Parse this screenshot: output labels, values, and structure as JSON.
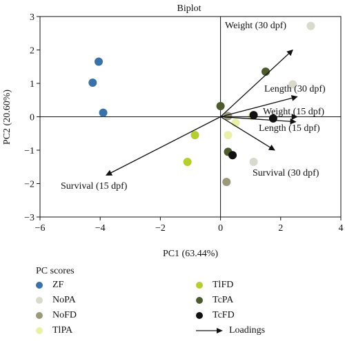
{
  "chart_data": {
    "type": "scatter",
    "title": "Biplot",
    "xlabel": "PC1 (63.44%)",
    "ylabel": "PC2 (20.60%)",
    "xlim": [
      -6,
      4
    ],
    "ylim": [
      -3,
      3
    ],
    "xticks": [
      -6,
      -4,
      -2,
      0,
      2,
      4
    ],
    "yticks": [
      -3,
      -2,
      -1,
      0,
      1,
      2,
      3
    ],
    "xtick_labels": [
      "−6",
      "−4",
      "−2",
      "0",
      "2",
      "4"
    ],
    "ytick_labels": [
      "−3",
      "−2",
      "−1",
      "0",
      "1",
      "2",
      "3"
    ],
    "reference_lines": {
      "x0": true,
      "y0": true
    },
    "grid": false,
    "series": [
      {
        "name": "ZF",
        "color": "#3a72a8",
        "points": [
          [
            -4.05,
            1.65
          ],
          [
            -4.25,
            1.02
          ],
          [
            -3.9,
            0.12
          ]
        ]
      },
      {
        "name": "NoPA",
        "color": "#d9d9cc",
        "points": [
          [
            3.0,
            2.72
          ],
          [
            2.4,
            0.97
          ],
          [
            1.1,
            -1.35
          ]
        ]
      },
      {
        "name": "NoFD",
        "color": "#9a9a7a",
        "points": [
          [
            0.2,
            -1.95
          ],
          [
            0.25,
            0.02
          ]
        ]
      },
      {
        "name": "TlPA",
        "color": "#eaf0a8",
        "points": [
          [
            0.5,
            -0.18
          ],
          [
            0.25,
            -0.55
          ],
          [
            1.05,
            0.02
          ]
        ]
      },
      {
        "name": "TlFD",
        "color": "#b5cf2e",
        "points": [
          [
            -0.85,
            -0.55
          ],
          [
            -1.1,
            -1.35
          ]
        ]
      },
      {
        "name": "TcPA",
        "color": "#4d5a2e",
        "points": [
          [
            1.5,
            1.35
          ],
          [
            0.0,
            0.32
          ],
          [
            0.25,
            -1.05
          ]
        ]
      },
      {
        "name": "TcFD",
        "color": "#111111",
        "points": [
          [
            0.4,
            -1.15
          ],
          [
            1.75,
            -0.05
          ],
          [
            1.1,
            0.05
          ]
        ]
      }
    ],
    "loadings": [
      {
        "label": "Weight (30 dpf)",
        "end": [
          2.4,
          2.0
        ]
      },
      {
        "label": "Length (30 dpf)",
        "end": [
          2.55,
          0.6
        ]
      },
      {
        "label": "Weight (15 dpf)",
        "end": [
          2.55,
          0.0
        ]
      },
      {
        "label": "Length (15 dpf)",
        "end": [
          2.5,
          -0.15
        ]
      },
      {
        "label": "Survival (30 dpf)",
        "end": [
          1.8,
          -1.0
        ]
      },
      {
        "label": "Survival (15 dpf)",
        "end": [
          -3.8,
          -1.75
        ]
      }
    ],
    "legend": {
      "title": "PC scores",
      "placement": "bottom",
      "loadings_label": "Loadings"
    }
  }
}
